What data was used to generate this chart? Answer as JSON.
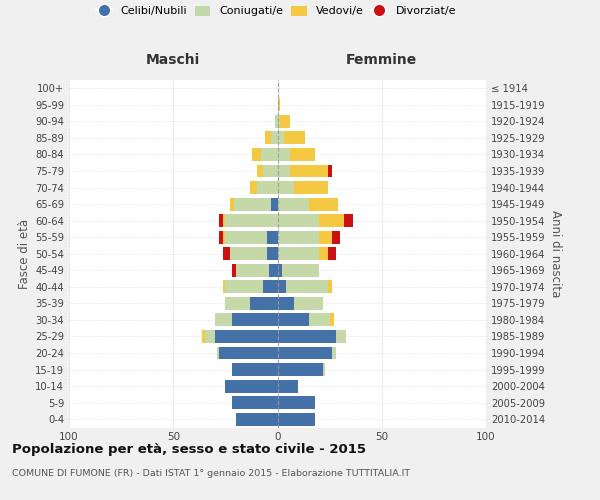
{
  "age_groups": [
    "0-4",
    "5-9",
    "10-14",
    "15-19",
    "20-24",
    "25-29",
    "30-34",
    "35-39",
    "40-44",
    "45-49",
    "50-54",
    "55-59",
    "60-64",
    "65-69",
    "70-74",
    "75-79",
    "80-84",
    "85-89",
    "90-94",
    "95-99",
    "100+"
  ],
  "birth_years": [
    "2010-2014",
    "2005-2009",
    "2000-2004",
    "1995-1999",
    "1990-1994",
    "1985-1989",
    "1980-1984",
    "1975-1979",
    "1970-1974",
    "1965-1969",
    "1960-1964",
    "1955-1959",
    "1950-1954",
    "1945-1949",
    "1940-1944",
    "1935-1939",
    "1930-1934",
    "1925-1929",
    "1920-1924",
    "1915-1919",
    "≤ 1914"
  ],
  "maschi": {
    "celibi": [
      20,
      22,
      25,
      22,
      28,
      30,
      22,
      13,
      7,
      4,
      5,
      5,
      0,
      3,
      0,
      0,
      0,
      0,
      0,
      0,
      0
    ],
    "coniugati": [
      0,
      0,
      0,
      0,
      1,
      5,
      8,
      12,
      18,
      16,
      18,
      20,
      25,
      18,
      10,
      7,
      8,
      3,
      1,
      0,
      0
    ],
    "vedovi": [
      0,
      0,
      0,
      0,
      0,
      1,
      0,
      0,
      1,
      0,
      0,
      1,
      1,
      2,
      3,
      3,
      4,
      3,
      0,
      0,
      0
    ],
    "divorziati": [
      0,
      0,
      0,
      0,
      0,
      0,
      0,
      0,
      0,
      2,
      3,
      2,
      2,
      0,
      0,
      0,
      0,
      0,
      0,
      0,
      0
    ]
  },
  "femmine": {
    "nubili": [
      18,
      18,
      10,
      22,
      26,
      28,
      15,
      8,
      4,
      2,
      0,
      0,
      0,
      0,
      0,
      0,
      0,
      0,
      0,
      0,
      0
    ],
    "coniugate": [
      0,
      0,
      0,
      1,
      2,
      5,
      10,
      14,
      20,
      18,
      20,
      20,
      20,
      15,
      8,
      6,
      6,
      3,
      1,
      0,
      0
    ],
    "vedove": [
      0,
      0,
      0,
      0,
      0,
      0,
      2,
      0,
      2,
      0,
      4,
      6,
      12,
      14,
      16,
      18,
      12,
      10,
      5,
      1,
      0
    ],
    "divorziate": [
      0,
      0,
      0,
      0,
      0,
      0,
      0,
      0,
      0,
      0,
      4,
      4,
      4,
      0,
      0,
      2,
      0,
      0,
      0,
      0,
      0
    ]
  },
  "colors": {
    "celibi_nubili": "#4472a8",
    "coniugati": "#c5d9a8",
    "vedovi": "#f5c842",
    "divorziati": "#cc1111"
  },
  "title": "Popolazione per età, sesso e stato civile - 2015",
  "subtitle": "COMUNE DI FUMONE (FR) - Dati ISTAT 1° gennaio 2015 - Elaborazione TUTTITALIA.IT",
  "xlabel_left": "Maschi",
  "xlabel_right": "Femmine",
  "ylabel_left": "Fasce di età",
  "ylabel_right": "Anni di nascita",
  "xlim": 100,
  "bg_color": "#f0f0f0",
  "plot_bg": "#ffffff",
  "grid_color": "#cccccc"
}
